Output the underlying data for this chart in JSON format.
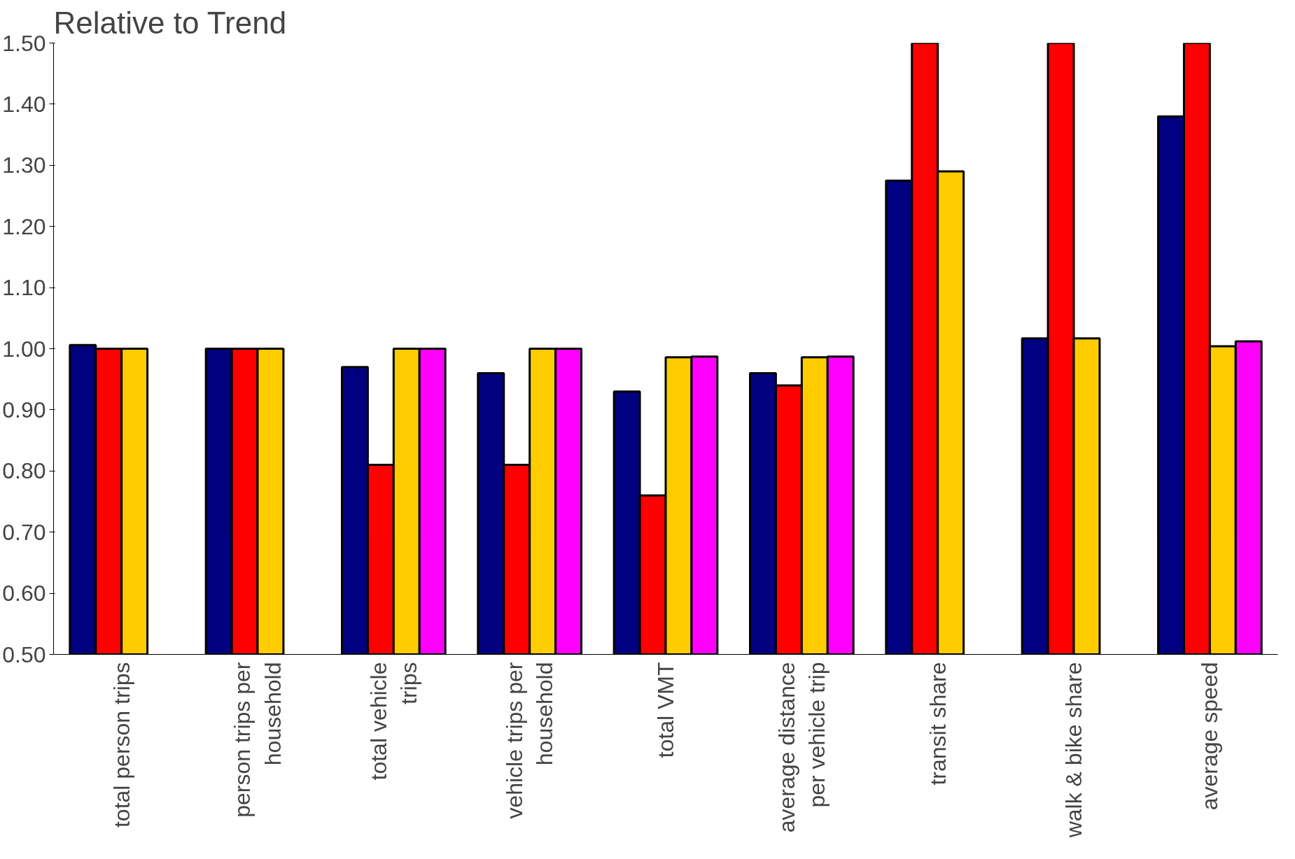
{
  "chart_data": {
    "type": "bar",
    "title": "Relative to Trend",
    "categories": [
      "total person trips",
      "person trips per household",
      "total vehicle trips",
      "vehicle trips per household",
      "total VMT",
      "average distance per vehicle trip",
      "transit share",
      "walk & bike share",
      "average speed"
    ],
    "series": [
      {
        "color": "#000080",
        "values": [
          1.006,
          1.0,
          0.97,
          0.96,
          0.93,
          0.96,
          1.275,
          1.017,
          1.38
        ]
      },
      {
        "color": "#ff0000",
        "values": [
          1.0,
          1.0,
          0.81,
          0.81,
          0.76,
          0.94,
          1.5,
          1.5,
          1.5
        ]
      },
      {
        "color": "#ffcc00",
        "values": [
          1.0,
          1.0,
          1.0,
          1.0,
          0.986,
          0.986,
          1.29,
          1.017,
          1.004
        ]
      },
      {
        "color": "#ff00ff",
        "values": [
          null,
          null,
          1.0,
          1.0,
          0.987,
          0.987,
          null,
          null,
          1.012
        ]
      }
    ],
    "ylim": [
      0.5,
      1.5
    ],
    "yticks": [
      {
        "value": 0.5,
        "label": "0.50"
      },
      {
        "value": 0.6,
        "label": "0.60"
      },
      {
        "value": 0.7,
        "label": "0.70"
      },
      {
        "value": 0.8,
        "label": "0.80"
      },
      {
        "value": 0.9,
        "label": "0.90"
      },
      {
        "value": 1.0,
        "label": "1.00"
      },
      {
        "value": 1.1,
        "label": "1.10"
      },
      {
        "value": 1.2,
        "label": "1.20"
      },
      {
        "value": 1.3,
        "label": "1.30"
      },
      {
        "value": 1.4,
        "label": "1.40"
      },
      {
        "value": 1.5,
        "label": "1.50"
      }
    ],
    "grid": false
  }
}
